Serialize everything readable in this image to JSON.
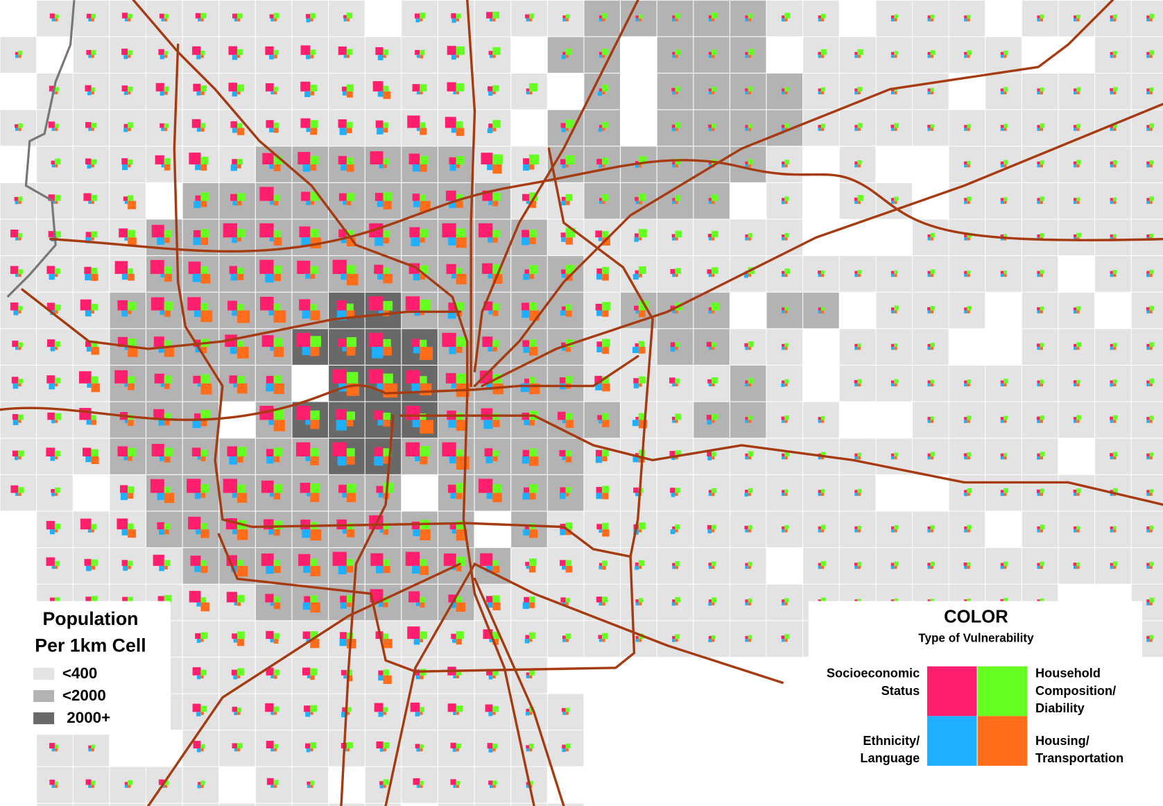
{
  "population_legend": {
    "title_lines": [
      "Population",
      "Per 1km Cell"
    ],
    "items": [
      {
        "label": "<400",
        "color": "#e3e3e3"
      },
      {
        "label": "<2000",
        "color": "#b3b3b3"
      },
      {
        "label": "2000+",
        "color": "#696969"
      }
    ]
  },
  "color_legend": {
    "title": "COLOR",
    "subtitle": "Type of Vulnerability",
    "types": [
      {
        "lines": [
          "Socioeconomic",
          "Status"
        ],
        "color": "#ff1f6e"
      },
      {
        "lines": [
          "Household",
          "Composition/",
          "Diability"
        ],
        "color": "#66ff22"
      },
      {
        "lines": [
          "Ethnicity/",
          "Language"
        ],
        "color": "#1eb0ff"
      },
      {
        "lines": [
          "Housing/",
          "Transportation"
        ],
        "color": "#ff6d1a"
      }
    ]
  }
}
